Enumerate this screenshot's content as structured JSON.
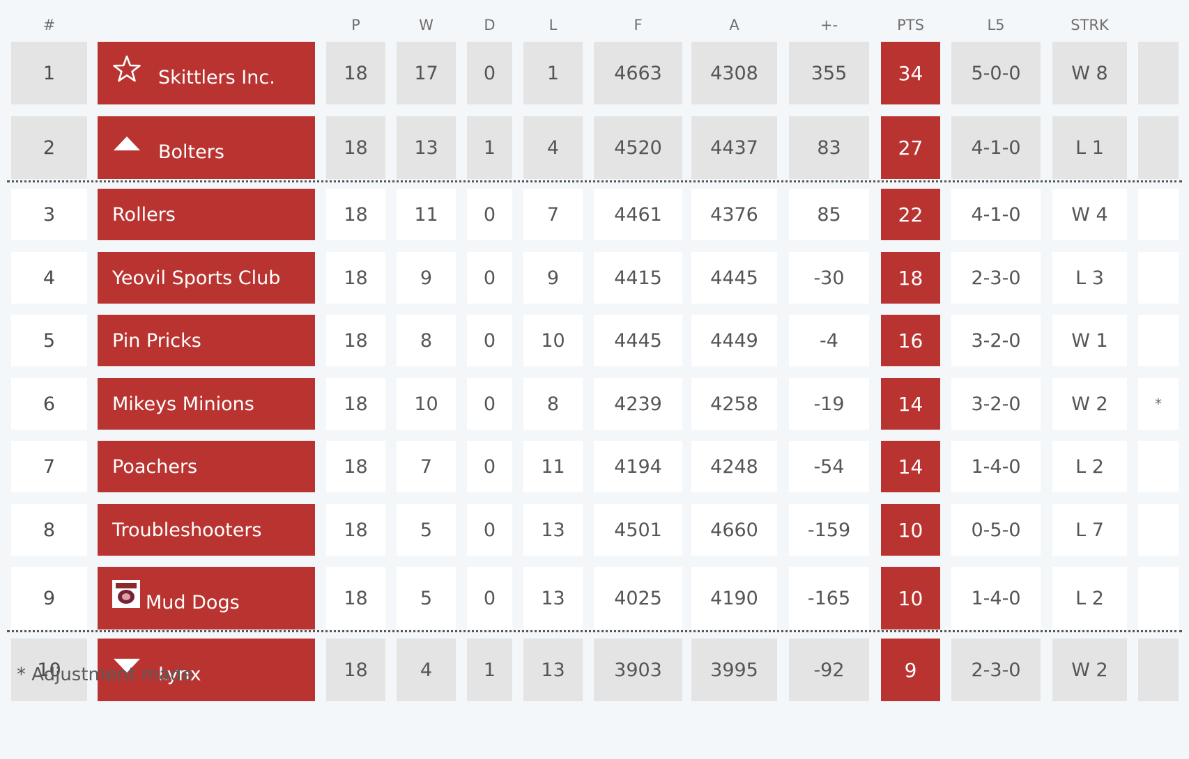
{
  "columns": {
    "pos": "#",
    "team": "",
    "p": "P",
    "w": "W",
    "d": "D",
    "l": "L",
    "f": "F",
    "a": "A",
    "diff": "+-",
    "pts": "PTS",
    "l5": "L5",
    "strk": "STRK",
    "extra": ""
  },
  "rows": [
    {
      "pos": "1",
      "team": "Skittlers Inc.",
      "badge": "star-icon",
      "p": "18",
      "w": "17",
      "d": "0",
      "l": "1",
      "f": "4663",
      "a": "4308",
      "diff": "355",
      "pts": "34",
      "l5": "5-0-0",
      "strk": "W 8",
      "extra": ""
    },
    {
      "pos": "2",
      "team": "Bolters",
      "badge": "triangle-up-icon",
      "p": "18",
      "w": "13",
      "d": "1",
      "l": "4",
      "f": "4520",
      "a": "4437",
      "diff": "83",
      "pts": "27",
      "l5": "4-1-0",
      "strk": "L 1",
      "extra": ""
    },
    {
      "pos": "3",
      "team": "Rollers",
      "badge": "",
      "p": "18",
      "w": "11",
      "d": "0",
      "l": "7",
      "f": "4461",
      "a": "4376",
      "diff": "85",
      "pts": "22",
      "l5": "4-1-0",
      "strk": "W 4",
      "extra": ""
    },
    {
      "pos": "4",
      "team": "Yeovil Sports Club",
      "badge": "",
      "p": "18",
      "w": "9",
      "d": "0",
      "l": "9",
      "f": "4415",
      "a": "4445",
      "diff": "-30",
      "pts": "18",
      "l5": "2-3-0",
      "strk": "L 3",
      "extra": ""
    },
    {
      "pos": "5",
      "team": "Pin Pricks",
      "badge": "",
      "p": "18",
      "w": "8",
      "d": "0",
      "l": "10",
      "f": "4445",
      "a": "4449",
      "diff": "-4",
      "pts": "16",
      "l5": "3-2-0",
      "strk": "W 1",
      "extra": ""
    },
    {
      "pos": "6",
      "team": "Mikeys Minions",
      "badge": "",
      "p": "18",
      "w": "10",
      "d": "0",
      "l": "8",
      "f": "4239",
      "a": "4258",
      "diff": "-19",
      "pts": "14",
      "l5": "3-2-0",
      "strk": "W 2",
      "extra": "*"
    },
    {
      "pos": "7",
      "team": "Poachers",
      "badge": "",
      "p": "18",
      "w": "7",
      "d": "0",
      "l": "11",
      "f": "4194",
      "a": "4248",
      "diff": "-54",
      "pts": "14",
      "l5": "1-4-0",
      "strk": "L 2",
      "extra": ""
    },
    {
      "pos": "8",
      "team": "Troubleshooters",
      "badge": "",
      "p": "18",
      "w": "5",
      "d": "0",
      "l": "13",
      "f": "4501",
      "a": "4660",
      "diff": "-159",
      "pts": "10",
      "l5": "0-5-0",
      "strk": "L 7",
      "extra": ""
    },
    {
      "pos": "9",
      "team": "Mud Dogs",
      "badge": "mud-dogs-logo-icon",
      "p": "18",
      "w": "5",
      "d": "0",
      "l": "13",
      "f": "4025",
      "a": "4190",
      "diff": "-165",
      "pts": "10",
      "l5": "1-4-0",
      "strk": "L 2",
      "extra": ""
    },
    {
      "pos": "10",
      "team": "Lynx",
      "badge": "triangle-down-icon",
      "p": "18",
      "w": "4",
      "d": "1",
      "l": "13",
      "f": "3903",
      "a": "3995",
      "diff": "-92",
      "pts": "9",
      "l5": "2-3-0",
      "strk": "W 2",
      "extra": ""
    }
  ],
  "footnote": "* Adjustment made",
  "colors": {
    "accent": "#b93431",
    "shaded_row": "#e4e4e4",
    "plain_row": "#ffffff",
    "background": "#f4f7fa"
  }
}
